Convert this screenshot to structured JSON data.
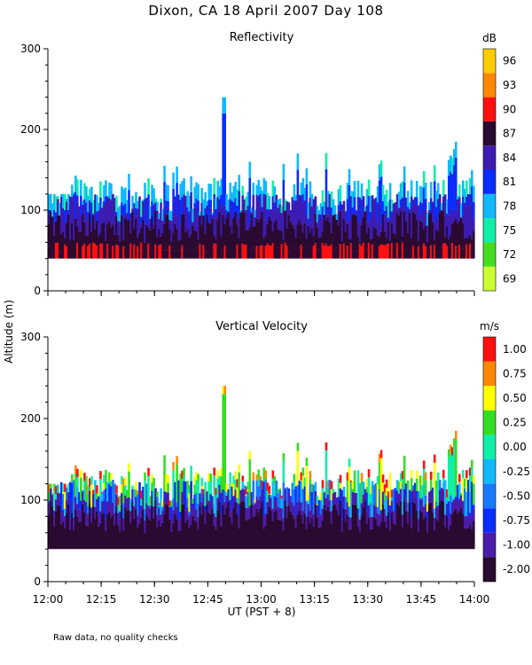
{
  "figure": {
    "title": "Dixon, CA 18 April 2007  Day 108",
    "shared_ylabel": "Altitude (m)",
    "xlabel": "UT  (PST + 8)",
    "footnote": "Raw data, no quality checks"
  },
  "chart_data": [
    {
      "type": "heatmap",
      "id": "reflectivity",
      "title": "Reflectivity",
      "ylabel": "Altitude (m)",
      "ylim": [
        0,
        300
      ],
      "y_ticks": [
        0,
        100,
        200,
        300
      ],
      "x_ticks": [
        "12:00",
        "12:15",
        "12:30",
        "12:45",
        "13:00",
        "13:15",
        "13:30",
        "13:45",
        "14:00"
      ],
      "x_range_minutes": [
        0,
        120
      ],
      "data_bottom_altitude": 40,
      "typical_echo_top": [
        100,
        140
      ],
      "max_echo_top": 240,
      "colorbar": {
        "unit": "dB",
        "tick_labels": [
          "69",
          "72",
          "75",
          "78",
          "81",
          "84",
          "87",
          "90",
          "93",
          "96"
        ],
        "bins": [
          {
            "label": "69",
            "color": "#ccff33"
          },
          {
            "label": "72",
            "color": "#44dd22"
          },
          {
            "label": "75",
            "color": "#11eeaa"
          },
          {
            "label": "78",
            "color": "#10b8ff"
          },
          {
            "label": "81",
            "color": "#0a2cff"
          },
          {
            "label": "84",
            "color": "#3c1cb2"
          },
          {
            "label": "87",
            "color": "#2a0a30"
          },
          {
            "label": "90",
            "color": "#ff1010"
          },
          {
            "label": "93",
            "color": "#ff8800"
          },
          {
            "label": "96",
            "color": "#ffcc00"
          }
        ]
      }
    },
    {
      "type": "heatmap",
      "id": "vertical-velocity",
      "title": "Vertical Velocity",
      "ylabel": "Altitude (m)",
      "ylim": [
        0,
        300
      ],
      "y_ticks": [
        0,
        100,
        200,
        300
      ],
      "x_ticks": [
        "12:00",
        "12:15",
        "12:30",
        "12:45",
        "13:00",
        "13:15",
        "13:30",
        "13:45",
        "14:00"
      ],
      "x_range_minutes": [
        0,
        120
      ],
      "data_bottom_altitude": 40,
      "typical_echo_top": [
        100,
        140
      ],
      "max_echo_top": 240,
      "colorbar": {
        "unit": "m/s",
        "tick_labels": [
          "-2.00",
          "-1.00",
          "-0.75",
          "-0.50",
          "-0.25",
          "0.00",
          "0.25",
          "0.50",
          "0.75",
          "1.00"
        ],
        "bins": [
          {
            "label": "-2.00",
            "color": "#2a0a30"
          },
          {
            "label": "-1.00",
            "color": "#4b1ca8"
          },
          {
            "label": "-0.75",
            "color": "#0a2cff"
          },
          {
            "label": "-0.50",
            "color": "#1a78ff"
          },
          {
            "label": "-0.25",
            "color": "#10b8ff"
          },
          {
            "label": "0.00",
            "color": "#11eeaa"
          },
          {
            "label": "0.25",
            "color": "#33dd22"
          },
          {
            "label": "0.50",
            "color": "#ffff00"
          },
          {
            "label": "0.75",
            "color": "#ff8800"
          },
          {
            "label": "1.00",
            "color": "#ff1010"
          }
        ]
      }
    }
  ]
}
